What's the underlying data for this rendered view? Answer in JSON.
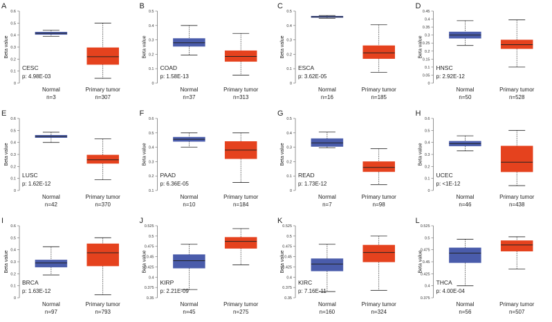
{
  "figure": {
    "colors": {
      "normal": "#4a5cab",
      "tumor": "#e5421e",
      "median": "#222222",
      "axis": "#777777"
    },
    "y_label": "Beta value"
  },
  "chart_data": [
    {
      "panel": "A",
      "type": "box",
      "cancer": "CESC",
      "p_label": "p: 4.98E-03",
      "ylim": [
        0,
        0.6
      ],
      "yticks": [
        "0",
        "0.1",
        "0.2",
        "0.3",
        "0.4",
        "0.5",
        "0.6"
      ],
      "ytick_values": [
        0,
        0.1,
        0.2,
        0.3,
        0.4,
        0.5,
        0.6
      ],
      "ylabel": "Beta value",
      "groups": [
        {
          "name": "Normal",
          "n_label": "n=3",
          "whisker_low": 0.39,
          "q1": 0.405,
          "median": 0.415,
          "q3": 0.425,
          "whisker_high": 0.44
        },
        {
          "name": "Primary tumor",
          "n_label": "n=307",
          "whisker_low": 0.04,
          "q1": 0.155,
          "median": 0.22,
          "q3": 0.295,
          "whisker_high": 0.5
        }
      ]
    },
    {
      "panel": "B",
      "type": "box",
      "cancer": "COAD",
      "p_label": "p: 1.58E-13",
      "ylim": [
        0,
        0.5
      ],
      "yticks": [
        "0",
        "0.1",
        "0.2",
        "0.3",
        "0.4",
        "0.5"
      ],
      "ytick_values": [
        0,
        0.1,
        0.2,
        0.3,
        0.4,
        0.5
      ],
      "ylabel": "Beta value",
      "groups": [
        {
          "name": "Normal",
          "n_label": "n=37",
          "whisker_low": 0.195,
          "q1": 0.255,
          "median": 0.28,
          "q3": 0.31,
          "whisker_high": 0.4
        },
        {
          "name": "Primary tumor",
          "n_label": "n=313",
          "whisker_low": 0.055,
          "q1": 0.15,
          "median": 0.185,
          "q3": 0.225,
          "whisker_high": 0.345
        }
      ]
    },
    {
      "panel": "C",
      "type": "box",
      "cancer": "ESCA",
      "p_label": "p: 3.62E-05",
      "ylim": [
        0,
        0.5
      ],
      "yticks": [
        "0",
        "0.1",
        "0.2",
        "0.3",
        "0.4",
        "0.5"
      ],
      "ytick_values": [
        0,
        0.1,
        0.2,
        0.3,
        0.4,
        0.5
      ],
      "ylabel": "Beta value",
      "groups": [
        {
          "name": "Normal",
          "n_label": "n=16",
          "whisker_low": 0.45,
          "q1": 0.455,
          "median": 0.46,
          "q3": 0.465,
          "whisker_high": 0.47
        },
        {
          "name": "Primary tumor",
          "n_label": "n=185",
          "whisker_low": 0.075,
          "q1": 0.17,
          "median": 0.21,
          "q3": 0.26,
          "whisker_high": 0.405
        }
      ]
    },
    {
      "panel": "D",
      "type": "box",
      "cancer": "HNSC",
      "p_label": "p: 2.92E-12",
      "ylim": [
        0,
        0.45
      ],
      "yticks": [
        "0",
        "0.05",
        "0.1",
        "0.15",
        "0.2",
        "0.25",
        "0.3",
        "0.35",
        "0.4",
        "0.45"
      ],
      "ytick_values": [
        0,
        0.05,
        0.1,
        0.15,
        0.2,
        0.25,
        0.3,
        0.35,
        0.4,
        0.45
      ],
      "ylabel": "Beta value",
      "groups": [
        {
          "name": "Normal",
          "n_label": "n=50",
          "whisker_low": 0.235,
          "q1": 0.28,
          "median": 0.3,
          "q3": 0.32,
          "whisker_high": 0.39
        },
        {
          "name": "Primary tumor",
          "n_label": "n=528",
          "whisker_low": 0.1,
          "q1": 0.215,
          "median": 0.24,
          "q3": 0.27,
          "whisker_high": 0.395
        }
      ]
    },
    {
      "panel": "E",
      "type": "box",
      "cancer": "LUSC",
      "p_label": "p: 1.62E-12",
      "ylim": [
        0,
        0.6
      ],
      "yticks": [
        "0",
        "0.1",
        "0.2",
        "0.3",
        "0.4",
        "0.5",
        "0.6"
      ],
      "ytick_values": [
        0,
        0.1,
        0.2,
        0.3,
        0.4,
        0.5,
        0.6
      ],
      "ylabel": "Beta value",
      "groups": [
        {
          "name": "Normal",
          "n_label": "n=42",
          "whisker_low": 0.4,
          "q1": 0.44,
          "median": 0.45,
          "q3": 0.46,
          "whisker_high": 0.485
        },
        {
          "name": "Primary tumor",
          "n_label": "n=370",
          "whisker_low": 0.09,
          "q1": 0.225,
          "median": 0.255,
          "q3": 0.295,
          "whisker_high": 0.43
        }
      ]
    },
    {
      "panel": "F",
      "type": "box",
      "cancer": "PAAD",
      "p_label": "p: 6.36E-05",
      "ylim": [
        0.1,
        0.6
      ],
      "yticks": [
        "0.1",
        "0.2",
        "0.3",
        "0.4",
        "0.5",
        "0.6"
      ],
      "ytick_values": [
        0.1,
        0.2,
        0.3,
        0.4,
        0.5,
        0.6
      ],
      "ylabel": "Beta value",
      "groups": [
        {
          "name": "Normal",
          "n_label": "n=10",
          "whisker_low": 0.4,
          "q1": 0.44,
          "median": 0.455,
          "q3": 0.47,
          "whisker_high": 0.5
        },
        {
          "name": "Primary tumor",
          "n_label": "n=184",
          "whisker_low": 0.155,
          "q1": 0.32,
          "median": 0.38,
          "q3": 0.44,
          "whisker_high": 0.5
        }
      ]
    },
    {
      "panel": "G",
      "type": "box",
      "cancer": "READ",
      "p_label": "p: 1.73E-12",
      "ylim": [
        0,
        0.5
      ],
      "yticks": [
        "0",
        "0.1",
        "0.2",
        "0.3",
        "0.4",
        "0.5"
      ],
      "ytick_values": [
        0,
        0.1,
        0.2,
        0.3,
        0.4,
        0.5
      ],
      "ylabel": "Beta value",
      "groups": [
        {
          "name": "Normal",
          "n_label": "n=7",
          "whisker_low": 0.295,
          "q1": 0.305,
          "median": 0.33,
          "q3": 0.36,
          "whisker_high": 0.405
        },
        {
          "name": "Primary tumor",
          "n_label": "n=98",
          "whisker_low": 0.04,
          "q1": 0.13,
          "median": 0.16,
          "q3": 0.2,
          "whisker_high": 0.29
        }
      ]
    },
    {
      "panel": "H",
      "type": "box",
      "cancer": "UCEC",
      "p_label": "p: <1E-12",
      "ylim": [
        0,
        0.6
      ],
      "yticks": [
        "0",
        "0.1",
        "0.2",
        "0.3",
        "0.4",
        "0.5",
        "0.6"
      ],
      "ytick_values": [
        0,
        0.1,
        0.2,
        0.3,
        0.4,
        0.5,
        0.6
      ],
      "ylabel": "Beta value",
      "groups": [
        {
          "name": "Normal",
          "n_label": "n=46",
          "whisker_low": 0.33,
          "q1": 0.37,
          "median": 0.39,
          "q3": 0.41,
          "whisker_high": 0.455
        },
        {
          "name": "Primary tumor",
          "n_label": "n=438",
          "whisker_low": 0.04,
          "q1": 0.155,
          "median": 0.235,
          "q3": 0.37,
          "whisker_high": 0.5
        }
      ]
    },
    {
      "panel": "I",
      "type": "box",
      "cancer": "BRCA",
      "p_label": "p: 1.63E-12",
      "ylim": [
        0,
        0.6
      ],
      "yticks": [
        "0",
        "0.1",
        "0.2",
        "0.3",
        "0.4",
        "0.5",
        "0.6"
      ],
      "ytick_values": [
        0,
        0.1,
        0.2,
        0.3,
        0.4,
        0.5,
        0.6
      ],
      "ylabel": "Beta value",
      "groups": [
        {
          "name": "Normal",
          "n_label": "n=97",
          "whisker_low": 0.19,
          "q1": 0.255,
          "median": 0.29,
          "q3": 0.315,
          "whisker_high": 0.425
        },
        {
          "name": "Primary tumor",
          "n_label": "n=793",
          "whisker_low": 0.025,
          "q1": 0.265,
          "median": 0.375,
          "q3": 0.45,
          "whisker_high": 0.5
        }
      ]
    },
    {
      "panel": "J",
      "type": "box",
      "cancer": "KIRP",
      "p_label": "p: 2.21E-09",
      "ylim": [
        0.35,
        0.525
      ],
      "yticks": [
        "0.35",
        "0.375",
        "0.4",
        "0.425",
        "0.45",
        "0.475",
        "0.5",
        "0.525"
      ],
      "ytick_values": [
        0.35,
        0.375,
        0.4,
        0.425,
        0.45,
        0.475,
        0.5,
        0.525
      ],
      "ylabel": "Beta value",
      "groups": [
        {
          "name": "Normal",
          "n_label": "n=45",
          "whisker_low": 0.37,
          "q1": 0.422,
          "median": 0.44,
          "q3": 0.455,
          "whisker_high": 0.48
        },
        {
          "name": "Primary tumor",
          "n_label": "n=275",
          "whisker_low": 0.43,
          "q1": 0.47,
          "median": 0.487,
          "q3": 0.497,
          "whisker_high": 0.518
        }
      ]
    },
    {
      "panel": "K",
      "type": "box",
      "cancer": "KIRC",
      "p_label": "p: 7.16E-11",
      "ylim": [
        0.35,
        0.525
      ],
      "yticks": [
        "0.35",
        "0.375",
        "0.4",
        "0.425",
        "0.45",
        "0.475",
        "0.5",
        "0.525"
      ],
      "ytick_values": [
        0.35,
        0.375,
        0.4,
        0.425,
        0.45,
        0.475,
        0.5,
        0.525
      ],
      "ylabel": "Beta value",
      "groups": [
        {
          "name": "Normal",
          "n_label": "n=160",
          "whisker_low": 0.365,
          "q1": 0.415,
          "median": 0.432,
          "q3": 0.445,
          "whisker_high": 0.48
        },
        {
          "name": "Primary tumor",
          "n_label": "n=324",
          "whisker_low": 0.368,
          "q1": 0.437,
          "median": 0.46,
          "q3": 0.478,
          "whisker_high": 0.5
        }
      ]
    },
    {
      "panel": "L",
      "type": "box",
      "cancer": "THCA",
      "p_label": "p: 4.00E-04",
      "ylim": [
        0.375,
        0.525
      ],
      "yticks": [
        "0.375",
        "0.4",
        "0.425",
        "0.45",
        "0.475",
        "0.5",
        "0.525"
      ],
      "ytick_values": [
        0.375,
        0.4,
        0.425,
        0.45,
        0.475,
        0.5,
        0.525
      ],
      "ylabel": "Beta value",
      "groups": [
        {
          "name": "Normal",
          "n_label": "n=56",
          "whisker_low": 0.4,
          "q1": 0.448,
          "median": 0.468,
          "q3": 0.479,
          "whisker_high": 0.497
        },
        {
          "name": "Primary tumor",
          "n_label": "n=507",
          "whisker_low": 0.435,
          "q1": 0.472,
          "median": 0.485,
          "q3": 0.494,
          "whisker_high": 0.502
        }
      ]
    }
  ]
}
